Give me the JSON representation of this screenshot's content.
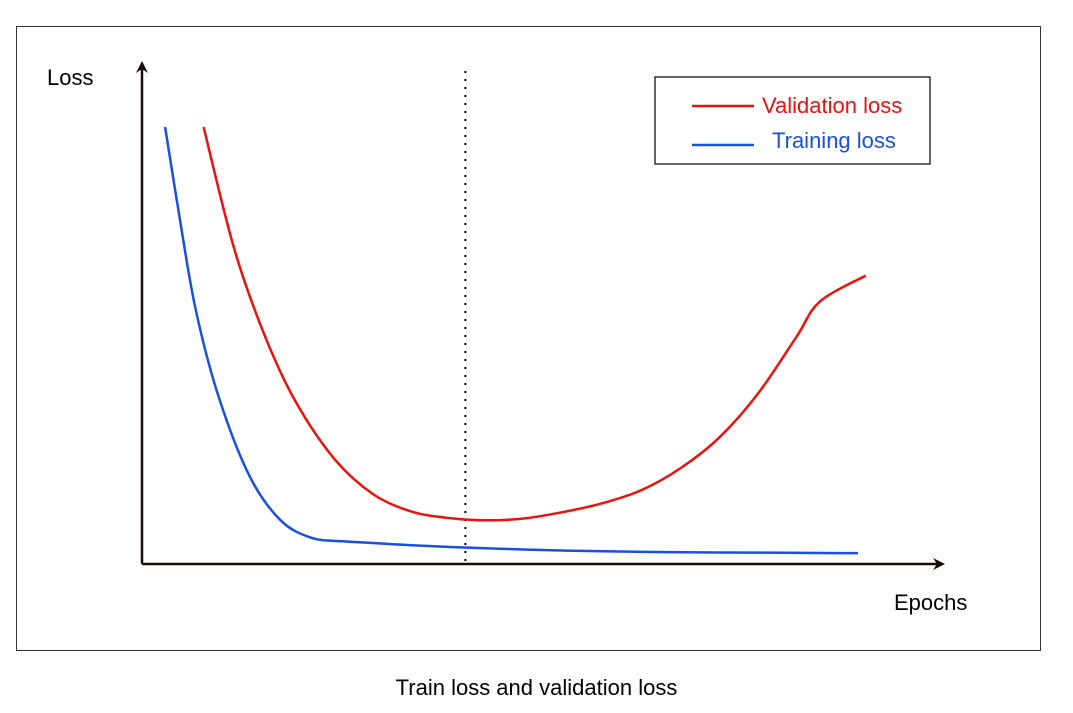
{
  "chart_data": {
    "type": "line",
    "title": "",
    "caption": "Train loss and validation loss",
    "xlabel": "Epochs",
    "ylabel": "Loss",
    "ticks": "none",
    "grid": false,
    "legend_position": "top-right",
    "xlim": [
      0,
      100
    ],
    "ylim": [
      0,
      100
    ],
    "series": [
      {
        "name": "Validation loss",
        "color": "#e8120f",
        "x": [
          8,
          12,
          16,
          20,
          25,
          30,
          35,
          40,
          45,
          50,
          55,
          60,
          65,
          70,
          75,
          80,
          85,
          88,
          94
        ],
        "y": [
          100,
          72,
          52,
          37,
          24,
          16,
          12,
          10.5,
          10,
          10.5,
          12,
          14,
          17,
          22,
          29,
          39,
          52,
          60,
          66
        ]
      },
      {
        "name": "Training loss",
        "color": "#1a4fe0",
        "x": [
          3,
          5,
          7,
          10,
          14,
          18,
          22,
          26,
          30,
          35,
          40,
          50,
          60,
          70,
          80,
          90,
          93
        ],
        "y": [
          100,
          78,
          58,
          38,
          20,
          10,
          6,
          5.2,
          4.8,
          4.3,
          3.9,
          3.3,
          2.9,
          2.7,
          2.6,
          2.5,
          2.5
        ]
      }
    ],
    "vline": {
      "x": 42,
      "style": "dotted",
      "color": "#000000"
    }
  }
}
